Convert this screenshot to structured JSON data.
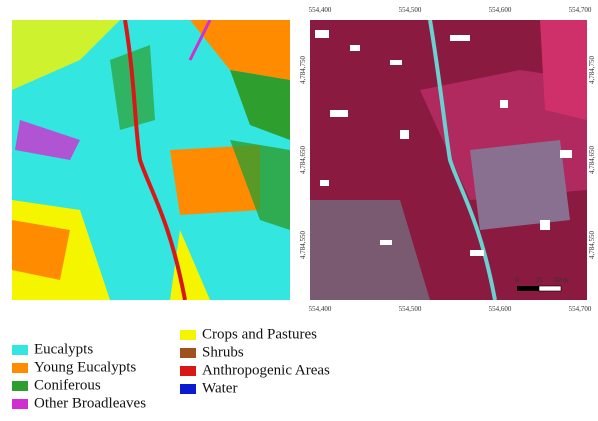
{
  "coordinates": {
    "easting": [
      "554,400",
      "554,500",
      "554,600",
      "554,700"
    ],
    "northing": [
      "4,784,750",
      "4,784,650",
      "4,784,550"
    ]
  },
  "scale_bar": {
    "labels": [
      "0",
      "25",
      "50 m"
    ]
  },
  "legend": {
    "items": [
      {
        "label": "Eucalypts",
        "color": "#33e6e0"
      },
      {
        "label": "Young Eucalypts",
        "color": "#ff8c00"
      },
      {
        "label": "Coniferous",
        "color": "#2e9e2e"
      },
      {
        "label": "Other Broadleaves",
        "color": "#d030d0"
      },
      {
        "label": "Crops and Pastures",
        "color": "#f5f500"
      },
      {
        "label": "Shrubs",
        "color": "#a0521e"
      },
      {
        "label": "Anthropogenic Areas",
        "color": "#d81818"
      },
      {
        "label": "Water",
        "color": "#0a1ad0"
      }
    ]
  }
}
